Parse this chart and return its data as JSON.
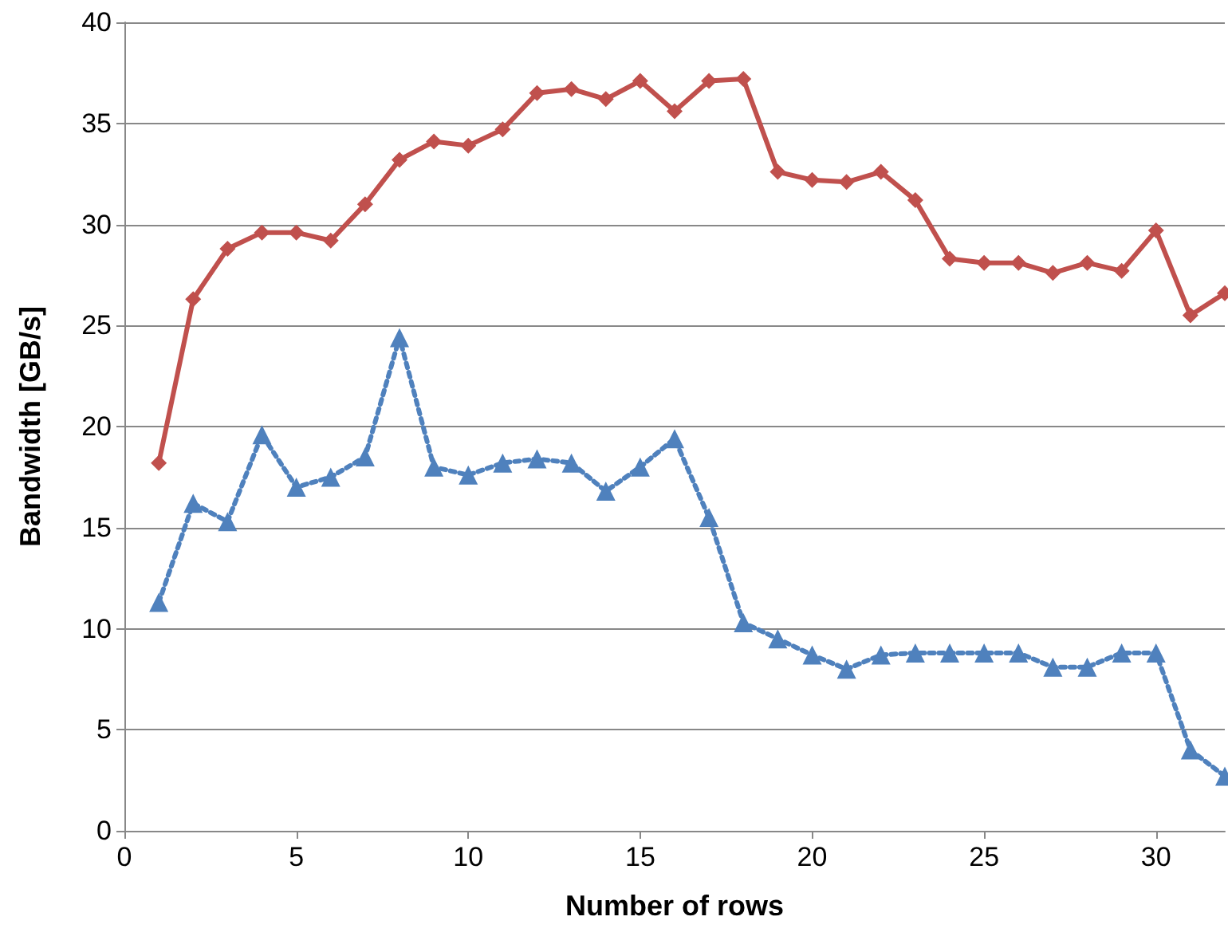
{
  "chart_data": {
    "type": "line",
    "xlabel": "Number of rows",
    "ylabel": "Bandwidth [GB/s]",
    "x": [
      1,
      2,
      3,
      4,
      5,
      6,
      7,
      8,
      9,
      10,
      11,
      12,
      13,
      14,
      15,
      16,
      17,
      18,
      19,
      20,
      21,
      22,
      23,
      24,
      25,
      26,
      27,
      28,
      29,
      30,
      31,
      32
    ],
    "series": [
      {
        "color": "#c0504d",
        "marker": "diamond",
        "line_style": "solid",
        "values": [
          18.2,
          26.3,
          28.8,
          29.6,
          29.6,
          29.2,
          31.0,
          33.2,
          34.1,
          33.9,
          34.7,
          36.5,
          36.7,
          36.2,
          37.1,
          35.6,
          37.1,
          37.2,
          32.6,
          32.2,
          32.1,
          32.6,
          31.2,
          28.3,
          28.1,
          28.1,
          27.6,
          28.1,
          27.7,
          29.7,
          25.5,
          26.6
        ]
      },
      {
        "color": "#4f81bd",
        "marker": "triangle",
        "line_style": "dotted",
        "values": [
          11.3,
          16.2,
          15.3,
          19.6,
          17.0,
          17.5,
          18.5,
          24.4,
          18.0,
          17.6,
          18.2,
          18.4,
          18.2,
          16.8,
          18.0,
          19.4,
          15.5,
          10.3,
          9.5,
          8.7,
          8.0,
          8.7,
          8.8,
          8.8,
          8.8,
          8.8,
          8.1,
          8.1,
          8.8,
          8.8,
          4.0,
          2.7
        ]
      }
    ],
    "xlim": [
      0,
      32
    ],
    "xticks": [
      0,
      5,
      10,
      15,
      20,
      25,
      30
    ],
    "ylim": [
      0,
      40
    ],
    "yticks": [
      0,
      5,
      10,
      15,
      20,
      25,
      30,
      35,
      40
    ],
    "grid": "y",
    "legend": false
  }
}
